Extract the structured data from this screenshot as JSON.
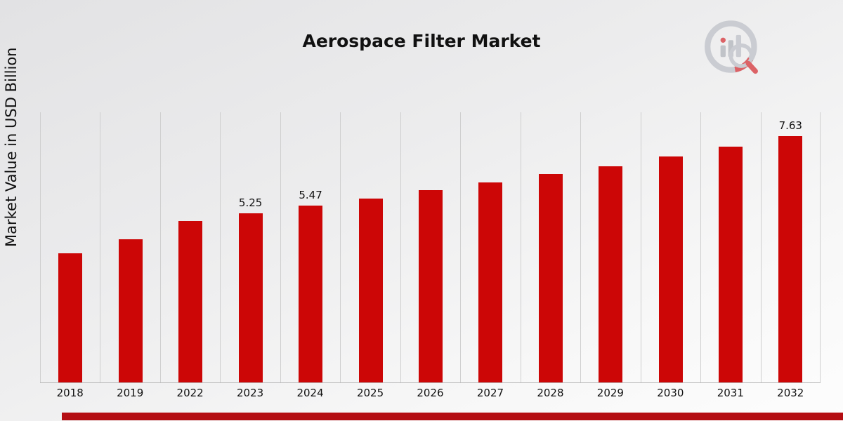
{
  "title": "Aerospace Filter Market",
  "ylabel": "Market Value in USD Billion",
  "logo_icon": "bar-chart-magnifier-icon",
  "colors": {
    "bar": "#cc0606",
    "bottom_stripe": "#b40d12",
    "grid": "#cfcfcf",
    "background_top": "#e2e2e4",
    "background_bottom": "#fdfdfd"
  },
  "chart_data": {
    "type": "bar",
    "title": "Aerospace Filter Market",
    "xlabel": "",
    "ylabel": "Market Value in USD Billion",
    "categories": [
      "2018",
      "2019",
      "2022",
      "2023",
      "2024",
      "2025",
      "2026",
      "2027",
      "2028",
      "2029",
      "2030",
      "2031",
      "2032"
    ],
    "values": [
      4.0,
      4.43,
      5.0,
      5.25,
      5.47,
      5.7,
      5.95,
      6.2,
      6.45,
      6.7,
      7.0,
      7.3,
      7.63
    ],
    "data_labels": {
      "2023": "5.25",
      "2024": "5.47",
      "2032": "7.63"
    },
    "ylim": [
      0,
      8.37
    ],
    "grid": "vertical-only",
    "legend": "none",
    "bar_color": "#cc0606"
  }
}
